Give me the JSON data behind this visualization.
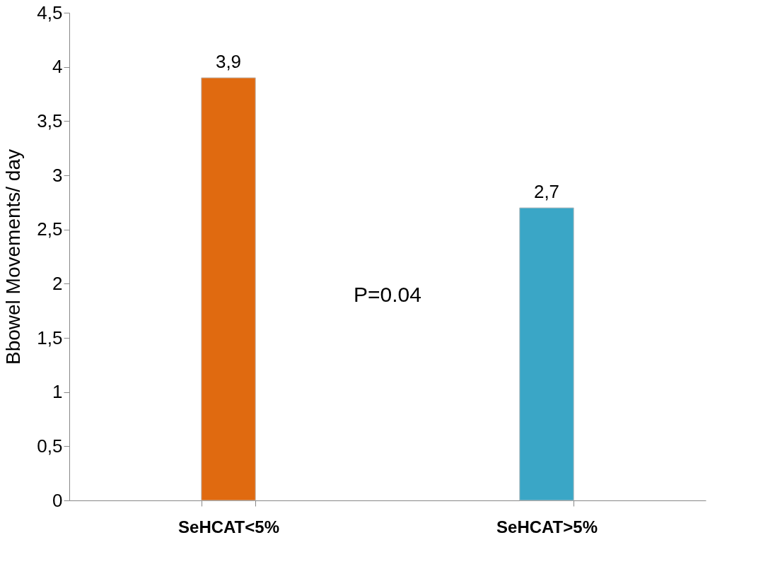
{
  "chart_data": {
    "type": "bar",
    "ylabel": "Bbowel Movements/ day",
    "categories": [
      "SeHCAT<5%",
      "SeHCAT>5%"
    ],
    "values": [
      3.9,
      2.7
    ],
    "colors": [
      "#e06a10",
      "#3aa6c6"
    ],
    "value_labels": [
      "3,9",
      "2,7"
    ],
    "ylim": [
      0,
      4.5
    ],
    "yticks": [
      0,
      {
        "value": 0.5,
        "label": "0,5"
      },
      1,
      {
        "value": 1.5,
        "label": "1,5"
      },
      2,
      {
        "value": 2.5,
        "label": "2,5"
      },
      3,
      {
        "value": 3.5,
        "label": "3,5"
      },
      4,
      {
        "value": 4.5,
        "label": "4,5"
      }
    ],
    "annotations": [
      "P=0.04"
    ],
    "grid": false
  }
}
